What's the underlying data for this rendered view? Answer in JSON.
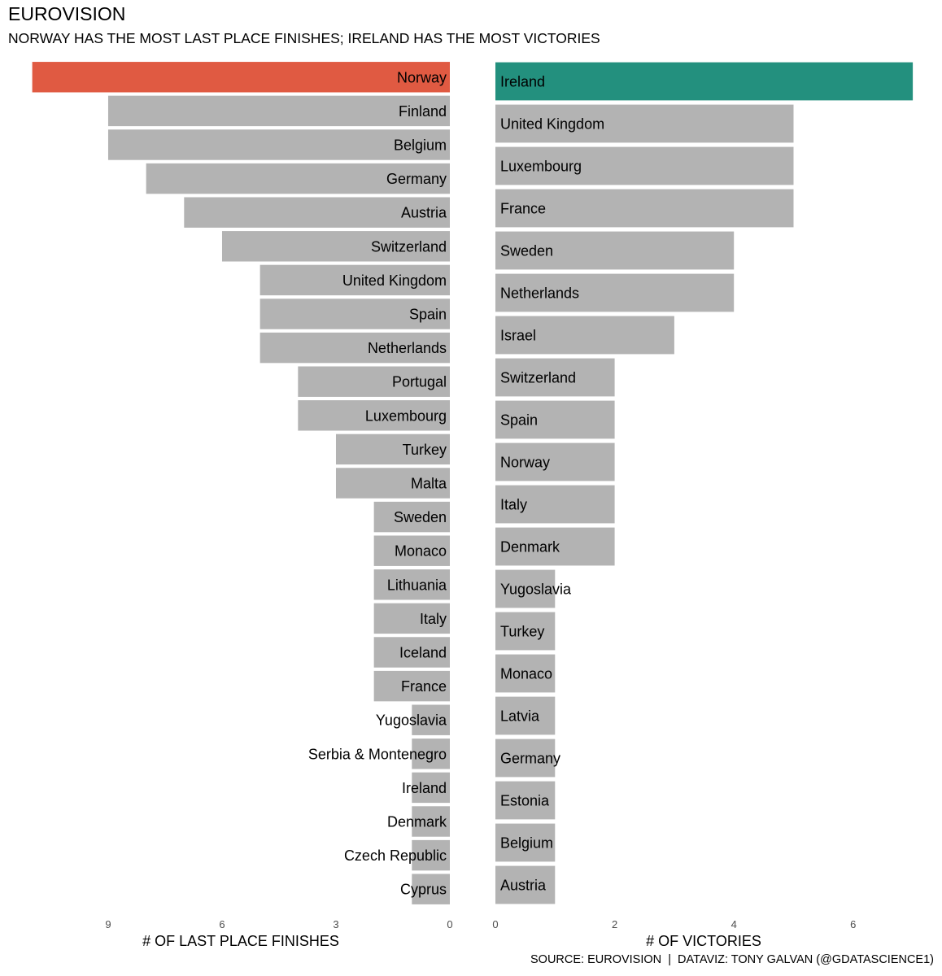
{
  "title": "EUROVISION",
  "subtitle": "NORWAY HAS THE MOST LAST PLACE FINISHES; IRELAND HAS THE MOST VICTORIES",
  "source": "SOURCE: EUROVISION  |  DATAVIZ: TONY GALVAN (@GDATASCIENCE1)",
  "colors": {
    "bar": "#b3b3b3",
    "highlight_left": "#e05a42",
    "highlight_right": "#23907e"
  },
  "chart_data": [
    {
      "type": "bar",
      "orientation": "horizontal-reversed",
      "xlabel": "# OF LAST PLACE FINISHES",
      "xticks": [
        9,
        6,
        3,
        0
      ],
      "xlim": [
        0,
        11
      ],
      "highlight": "Norway",
      "categories": [
        "Norway",
        "Finland",
        "Belgium",
        "Germany",
        "Austria",
        "Switzerland",
        "United Kingdom",
        "Spain",
        "Netherlands",
        "Portugal",
        "Luxembourg",
        "Turkey",
        "Malta",
        "Sweden",
        "Monaco",
        "Lithuania",
        "Italy",
        "Iceland",
        "France",
        "Yugoslavia",
        "Serbia & Montenegro",
        "Ireland",
        "Denmark",
        "Czech Republic",
        "Cyprus"
      ],
      "values": [
        11,
        9,
        9,
        8,
        7,
        6,
        5,
        5,
        5,
        4,
        4,
        3,
        3,
        2,
        2,
        2,
        2,
        2,
        2,
        1,
        1,
        1,
        1,
        1,
        1
      ]
    },
    {
      "type": "bar",
      "orientation": "horizontal",
      "xlabel": "# OF VICTORIES",
      "xticks": [
        0,
        2,
        4,
        6
      ],
      "xlim": [
        0,
        7
      ],
      "highlight": "Ireland",
      "categories": [
        "Ireland",
        "United Kingdom",
        "Luxembourg",
        "France",
        "Sweden",
        "Netherlands",
        "Israel",
        "Switzerland",
        "Spain",
        "Norway",
        "Italy",
        "Denmark",
        "Yugoslavia",
        "Turkey",
        "Monaco",
        "Latvia",
        "Germany",
        "Estonia",
        "Belgium",
        "Austria"
      ],
      "values": [
        7,
        5,
        5,
        5,
        4,
        4,
        3,
        2,
        2,
        2,
        2,
        2,
        1,
        1,
        1,
        1,
        1,
        1,
        1,
        1
      ]
    }
  ]
}
